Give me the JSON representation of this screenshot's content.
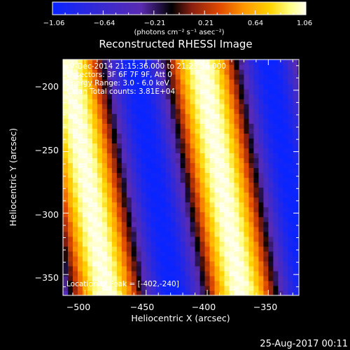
{
  "colors": {
    "background": "#000000",
    "foreground": "#ffffff",
    "colormap": [
      "#0a24ff",
      "#3a2ad0",
      "#5a2bb0",
      "#000000",
      "#8a1f10",
      "#e04a00",
      "#ff9a00",
      "#ffd400",
      "#ffff8a",
      "#ffffee"
    ]
  },
  "chart_data": {
    "type": "heatmap",
    "title": "Reconstructed RHESSI Image",
    "xlabel": "Heliocentric X (arcsec)",
    "ylabel": "Heliocentric Y (arcsec)",
    "xlim": [
      -518,
      -325
    ],
    "ylim": [
      -367,
      -175
    ],
    "x_ticks": [
      -500,
      -450,
      -400,
      -350
    ],
    "y_ticks": [
      -200,
      -250,
      -300,
      -350
    ],
    "x_tick_labels": [
      "−500",
      "−450",
      "−400",
      "−350"
    ],
    "y_tick_labels": [
      "−200",
      "−250",
      "−300",
      "−350"
    ],
    "grid": false,
    "colorbar": {
      "min": -1.06,
      "max": 1.06,
      "tick_labels": [
        "−1.06",
        "−0.64",
        "−0.21",
        "0.21",
        "0.64",
        "1.06"
      ],
      "unit_label": "(photons cm⁻² s⁻¹ asec⁻²)"
    },
    "fringe_pattern": {
      "description": "parallel diagonal fringes",
      "bright_band_centers_x_at_top": [
        -515,
        -405
      ],
      "dark_band_centers_x_at_top": [
        -460,
        -355
      ],
      "period_arcsec": 110,
      "slope_dx_per_dy": 0.17
    },
    "annotations": [
      "9-Dec-2014 21:15:36.000 to 21:25:36.000",
      "Detectors: 3F 6F 7F 9F, Att 0",
      "Energy Range: 3.0 - 6.0 keV",
      "Clean    Total counts: 3.81E+04",
      "Location of Peak = [-402,-240]"
    ]
  },
  "footer": {
    "date": "25-Aug-2017 00:11"
  }
}
